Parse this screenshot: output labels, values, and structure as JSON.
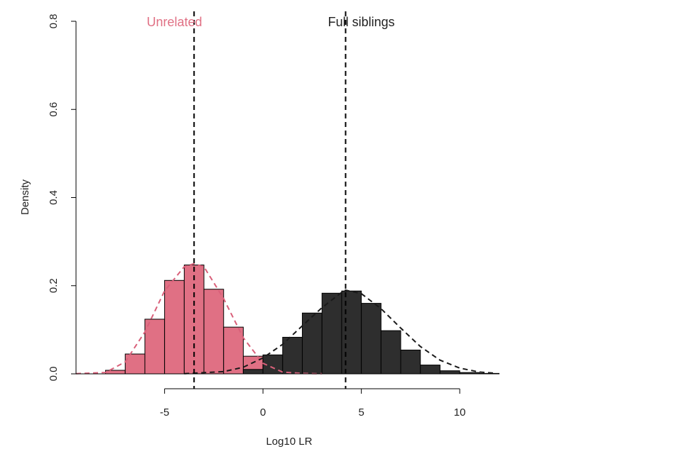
{
  "chart_data": {
    "type": "bar",
    "title": "",
    "xlabel": "Log10 LR",
    "ylabel": "Density",
    "xlim": [
      -9.5,
      11.8
    ],
    "ylim": [
      0,
      0.8
    ],
    "x_ticks": [
      -5,
      0,
      5,
      10
    ],
    "x_tick_labels": [
      "-5",
      "0",
      "5",
      "10"
    ],
    "y_ticks": [
      0,
      0.2,
      0.4,
      0.6,
      0.8
    ],
    "y_tick_labels": [
      "0.0",
      "0.2",
      "0.4",
      "0.6",
      "0.8"
    ],
    "bin_width": 1,
    "grid": false,
    "colors": {
      "unrelated": "#e07084",
      "full_siblings": "#2e2e2e"
    },
    "series": [
      {
        "name": "Unrelated",
        "label_x": -4.5,
        "bins_start": [
          -8,
          -7,
          -6,
          -5,
          -4,
          -3,
          -2,
          -1,
          0
        ],
        "density": [
          0.008,
          0.045,
          0.124,
          0.212,
          0.247,
          0.192,
          0.106,
          0.04,
          0.013
        ],
        "curve_x": [
          -9.5,
          -8,
          -7,
          -6,
          -5,
          -4,
          -3.5,
          -3,
          -2,
          -1,
          0,
          1,
          2,
          3
        ],
        "curve_y": [
          0.0005,
          0.003,
          0.027,
          0.095,
          0.188,
          0.243,
          0.25,
          0.243,
          0.171,
          0.082,
          0.024,
          0.004,
          0.001,
          0.0003
        ],
        "mean_line": -3.5
      },
      {
        "name": "Full siblings",
        "label_x": 5,
        "bins_start": [
          -1,
          0,
          1,
          2,
          3,
          4,
          5,
          6,
          7,
          8,
          9,
          10,
          11
        ],
        "density": [
          0.01,
          0.043,
          0.083,
          0.138,
          0.183,
          0.188,
          0.16,
          0.098,
          0.054,
          0.02,
          0.007,
          0.003,
          0.001
        ],
        "curve_x": [
          -4,
          -2,
          -1,
          0,
          1,
          2,
          3,
          4,
          4.2,
          5,
          6,
          7,
          8,
          9,
          10,
          11,
          11.8
        ],
        "curve_y": [
          0.0005,
          0.005,
          0.015,
          0.036,
          0.067,
          0.109,
          0.15,
          0.185,
          0.19,
          0.182,
          0.148,
          0.104,
          0.062,
          0.031,
          0.013,
          0.004,
          0.0015
        ],
        "mean_line": 4.2
      }
    ]
  }
}
